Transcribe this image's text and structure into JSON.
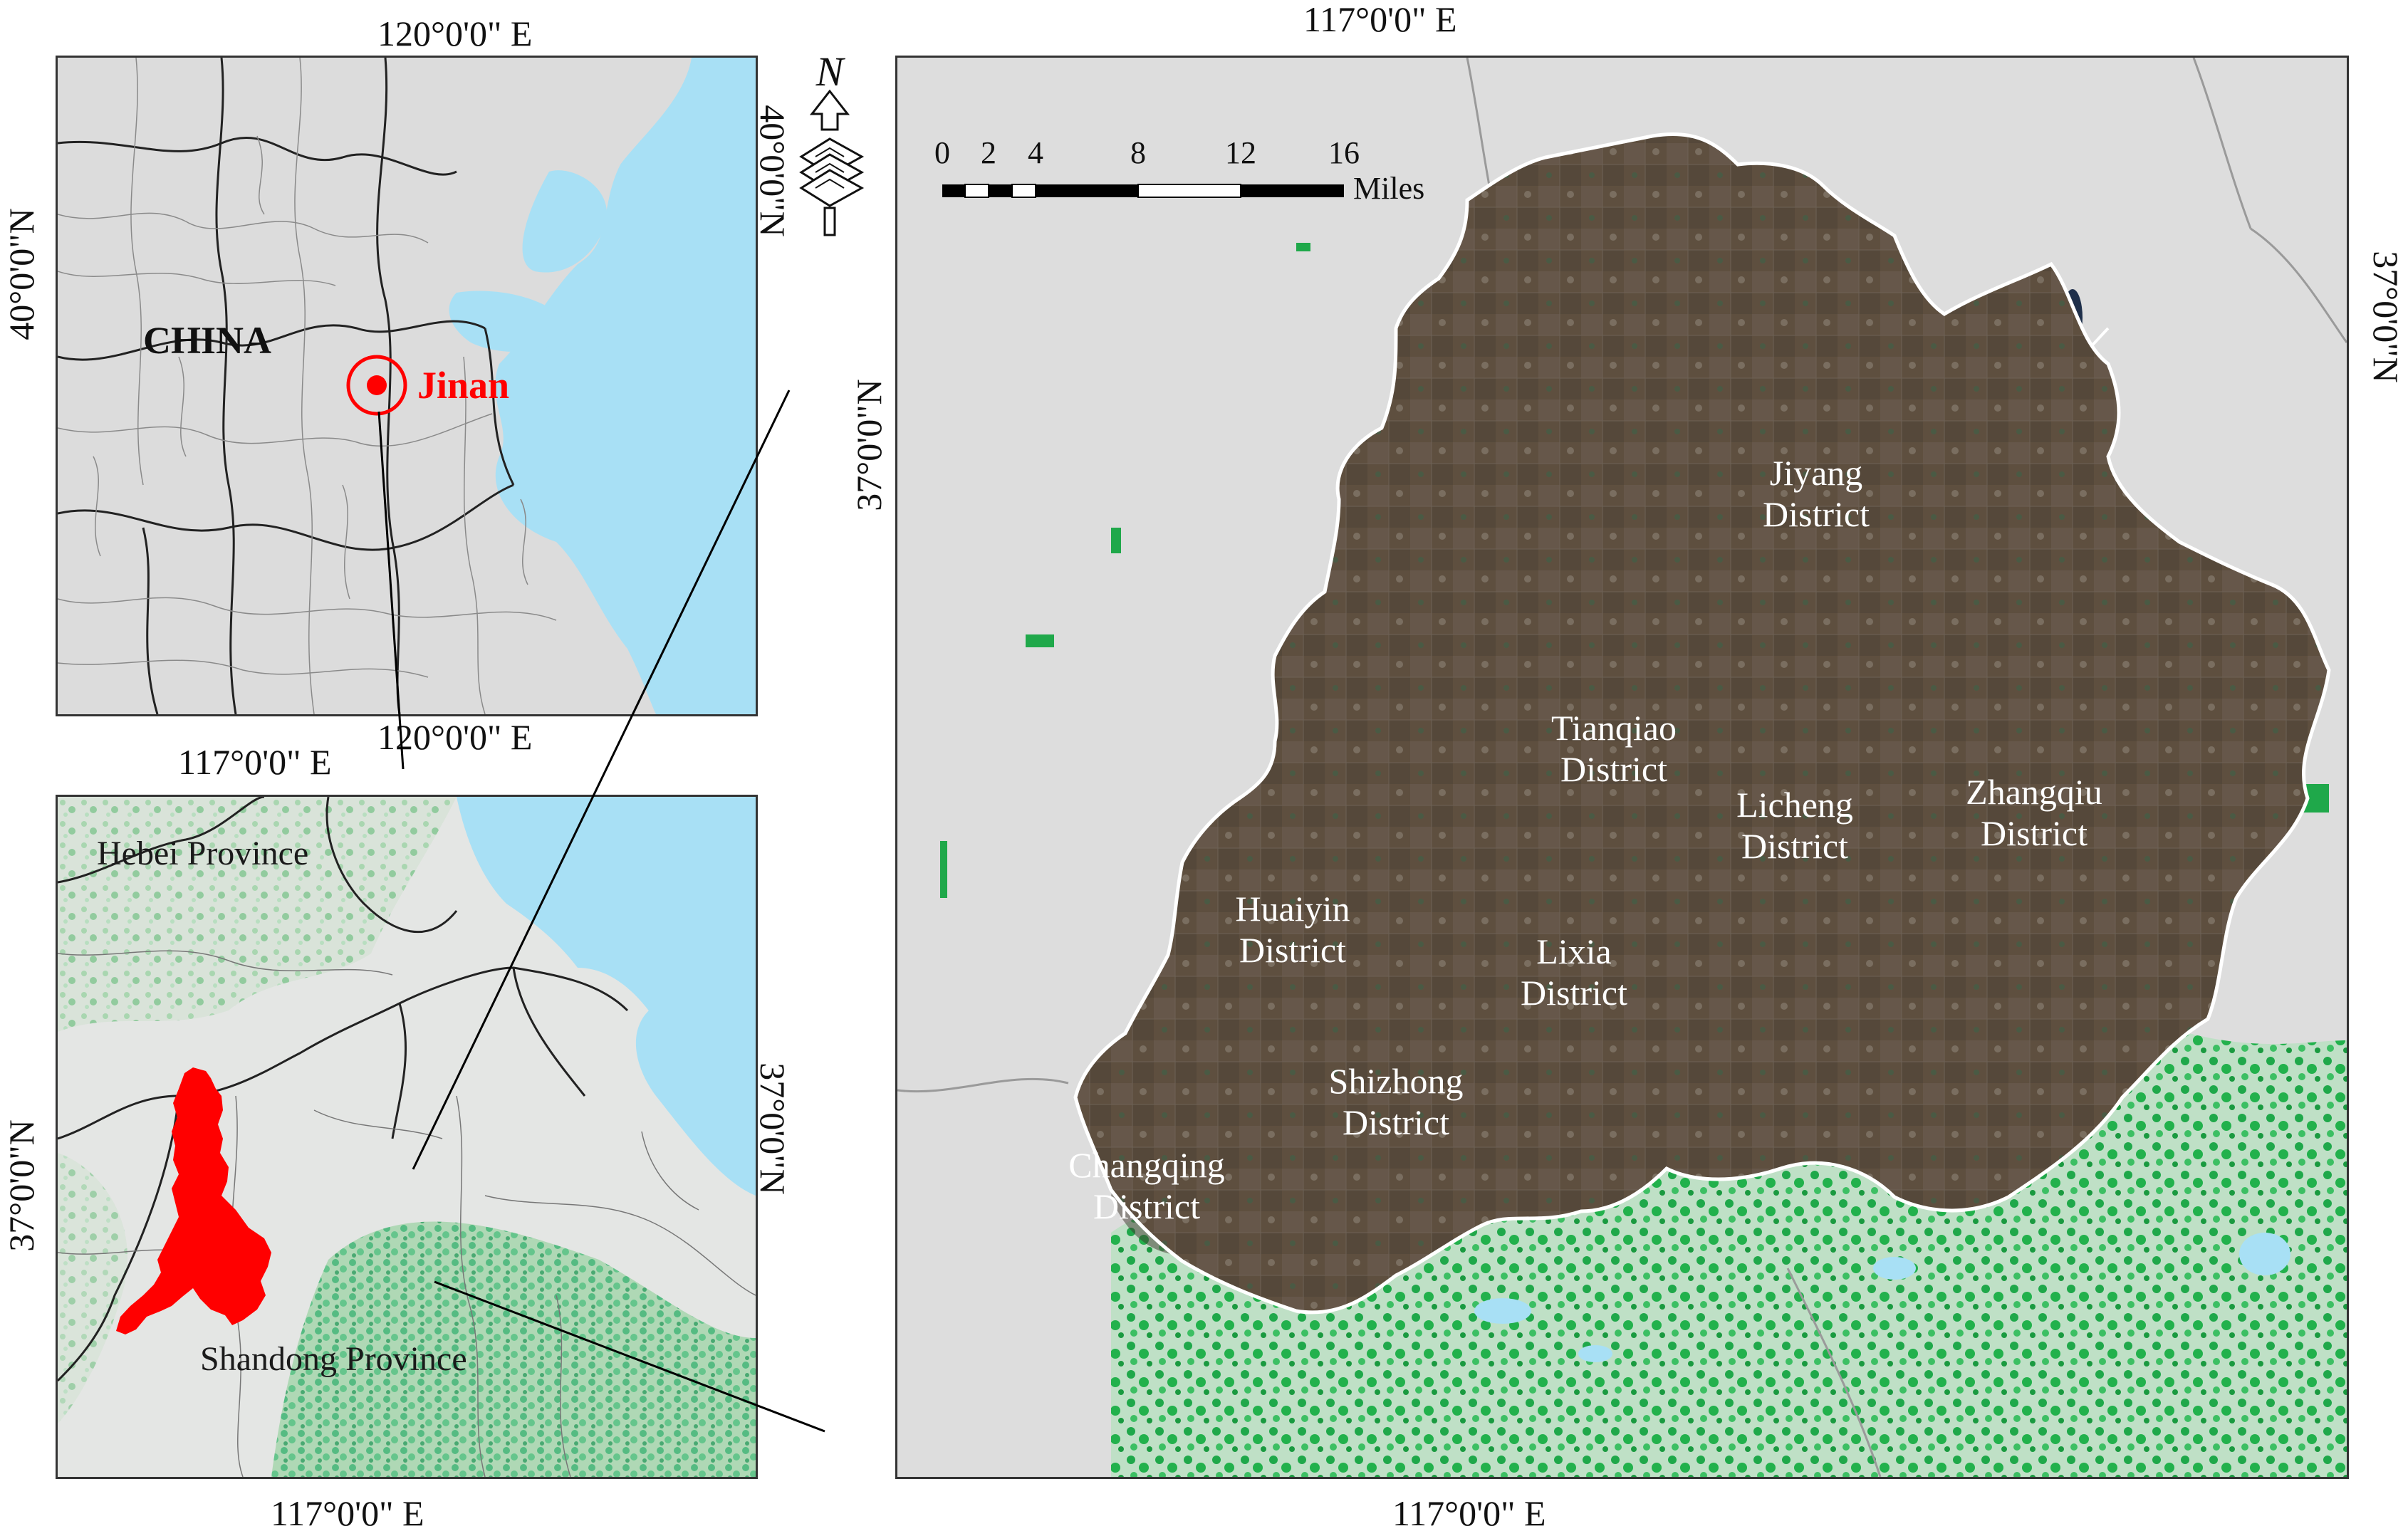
{
  "overview_map": {
    "coord_top": "120°0'0\" E",
    "coord_bottom": "120°0'0\" E",
    "coord_left": "40°0'0\"N",
    "coord_right": "40°0'0\"N",
    "country_label": "CHINA",
    "city_label": "Jinan",
    "colors": {
      "land": "#dcdcdc",
      "sea": "#a8e0f5",
      "marker": "#ff0000"
    }
  },
  "province_map": {
    "coord_top": "117°0'0\" E",
    "coord_bottom": "117°0'0\" E",
    "coord_left": "37°0'0\"N",
    "coord_right": "37°0'0\"N",
    "province_labels": [
      "Hebei Province",
      "Shandong Province"
    ],
    "colors": {
      "study_area": "#ff0000",
      "vegetation": "#3cb371"
    }
  },
  "main_map": {
    "coord_top": "117°0'0\" E",
    "coord_bottom": "117°0'0\" E",
    "coord_left": "37°0'0\"N",
    "coord_right": "37°0'0\"N",
    "north_arrow": "N",
    "scale_bar": {
      "ticks": [
        "0",
        "2",
        "4",
        "8",
        "12",
        "16"
      ],
      "unit": "Miles"
    },
    "districts": [
      {
        "line1": "Jiyang",
        "line2": "District"
      },
      {
        "line1": "Tianqiao",
        "line2": "District"
      },
      {
        "line1": "Licheng",
        "line2": "District"
      },
      {
        "line1": "Zhangqiu",
        "line2": "District"
      },
      {
        "line1": "Huaiyin",
        "line2": "District"
      },
      {
        "line1": "Lixia",
        "line2": "District"
      },
      {
        "line1": "Shizhong",
        "line2": "District"
      },
      {
        "line1": "Changqing",
        "line2": "District"
      }
    ],
    "colors": {
      "background": "#dddddd",
      "vegetation": "#1fa84a",
      "water": "#a8e0f5",
      "imagery": "#5e4f3f",
      "boundary": "#ffffff"
    }
  }
}
